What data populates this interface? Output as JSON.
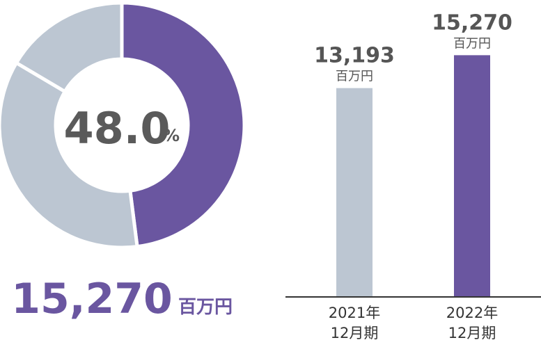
{
  "colors": {
    "accent": "#6a56a0",
    "muted": "#bcc6d2",
    "axis": "#333333"
  },
  "chart_data": [
    {
      "type": "pie",
      "slices": [
        {
          "value": 48.0,
          "color": "#6a56a0"
        },
        {
          "value": 35.5,
          "color": "#bcc6d2"
        },
        {
          "value": 16.5,
          "color": "#bcc6d2"
        }
      ],
      "center_value": "48.0",
      "center_unit": "%",
      "total_value": "15,270",
      "total_unit": "百万円"
    },
    {
      "type": "bar",
      "categories": [
        [
          "2021年",
          "12月期"
        ],
        [
          "2022年",
          "12月期"
        ]
      ],
      "values": [
        13193,
        15270
      ],
      "value_labels": [
        "13,193",
        "15,270"
      ],
      "value_unit": "百万円",
      "colors": [
        "#bcc6d2",
        "#6a56a0"
      ],
      "ylim": [
        0,
        17000
      ]
    }
  ]
}
